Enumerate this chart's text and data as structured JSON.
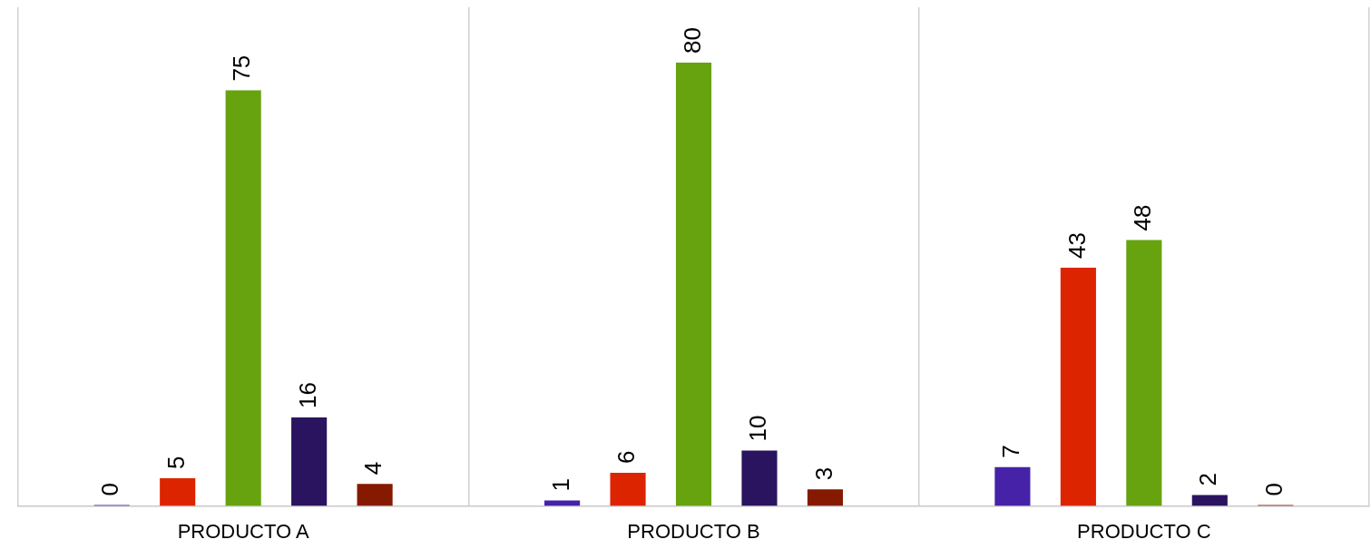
{
  "chart_data": {
    "type": "bar",
    "categories": [
      "PRODUCTO A",
      "PRODUCTO B",
      "PRODUCTO C"
    ],
    "series": [
      {
        "color": "#4522a8",
        "values": [
          0,
          1,
          7
        ]
      },
      {
        "color": "#dc2500",
        "values": [
          5,
          6,
          43
        ]
      },
      {
        "color": "#66a30f",
        "values": [
          75,
          80,
          48
        ]
      },
      {
        "color": "#2a145f",
        "values": [
          16,
          10,
          2
        ]
      },
      {
        "color": "#861a00",
        "values": [
          4,
          3,
          0
        ]
      }
    ],
    "ylim": [
      0,
      90
    ],
    "grid": "x",
    "legend": false,
    "tick_labels": "x",
    "data_labels": true
  }
}
